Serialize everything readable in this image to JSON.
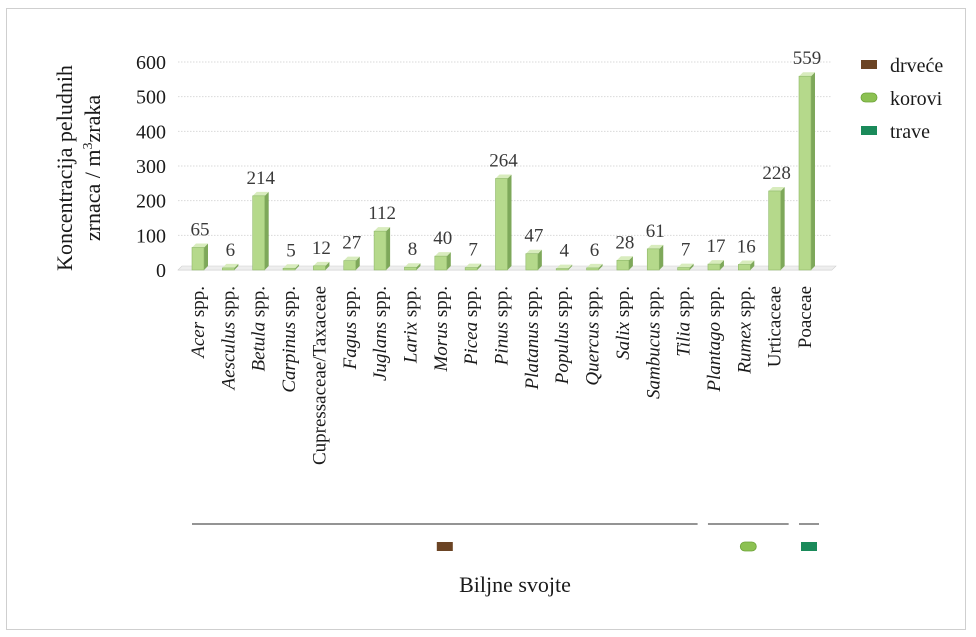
{
  "chart_data": {
    "type": "bar",
    "categories": [
      {
        "name": "Acer",
        "suffix": " spp.",
        "italic": true
      },
      {
        "name": "Aesculus",
        "suffix": " spp.",
        "italic": true
      },
      {
        "name": "Betula",
        "suffix": " spp.",
        "italic": true
      },
      {
        "name": "Carpinus",
        "suffix": " spp.",
        "italic": true
      },
      {
        "name": "Cupressaceae/Taxaceae",
        "suffix": "",
        "italic": false
      },
      {
        "name": "Fagus",
        "suffix": " spp.",
        "italic": true
      },
      {
        "name": "Juglans",
        "suffix": " spp.",
        "italic": true
      },
      {
        "name": "Larix",
        "suffix": " spp.",
        "italic": true
      },
      {
        "name": "Morus",
        "suffix": " spp.",
        "italic": true
      },
      {
        "name": "Picea",
        "suffix": " spp.",
        "italic": true
      },
      {
        "name": "Pinus",
        "suffix": " spp.",
        "italic": true
      },
      {
        "name": "Platanus",
        "suffix": " spp.",
        "italic": true
      },
      {
        "name": "Populus",
        "suffix": " spp.",
        "italic": true
      },
      {
        "name": "Quercus",
        "suffix": " spp.",
        "italic": true
      },
      {
        "name": "Salix",
        "suffix": " spp.",
        "italic": true
      },
      {
        "name": "Sambucus",
        "suffix": " spp.",
        "italic": true
      },
      {
        "name": "Tilia",
        "suffix": " spp.",
        "italic": true
      },
      {
        "name": "Plantago",
        "suffix": " spp.",
        "italic": true
      },
      {
        "name": "Rumex",
        "suffix": " spp.",
        "italic": true
      },
      {
        "name": "Urticaceae",
        "suffix": "",
        "italic": false
      },
      {
        "name": "Poaceae",
        "suffix": "",
        "italic": false
      }
    ],
    "values": [
      65,
      6,
      214,
      5,
      12,
      27,
      112,
      8,
      40,
      7,
      264,
      47,
      4,
      6,
      28,
      61,
      7,
      17,
      16,
      228,
      559
    ],
    "ylim": [
      0,
      600
    ],
    "yticks": [
      0,
      100,
      200,
      300,
      400,
      500,
      600
    ],
    "ylabel_line1": "Koncentracija peludnih",
    "ylabel_line2_pre": "zrnaca / m",
    "ylabel_sup": "3",
    "ylabel_line2_post": "zraka",
    "xlabel": "Biljne svojte",
    "grid": true,
    "legend_placement": "right",
    "legend": [
      {
        "label": "drveće",
        "color": "#6b4424"
      },
      {
        "label": "korovi",
        "color": "#8cc152"
      },
      {
        "label": "trave",
        "color": "#1a8a5a"
      }
    ],
    "groups": [
      {
        "label": "drveće",
        "from": 0,
        "to": 16,
        "color": "#6b4424"
      },
      {
        "label": "korovi",
        "from": 17,
        "to": 19,
        "color": "#8cc152"
      },
      {
        "label": "trave",
        "from": 20,
        "to": 20,
        "color": "#1a8a5a"
      }
    ],
    "bar_color": "#b5d98b"
  }
}
